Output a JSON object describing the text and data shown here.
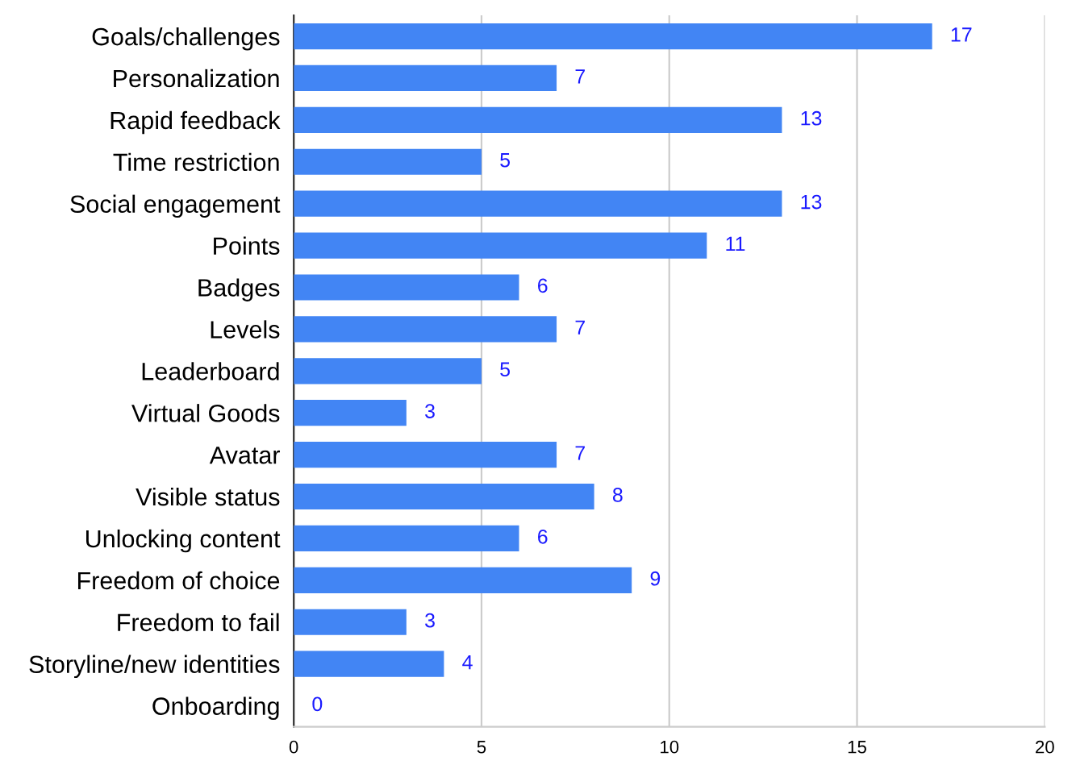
{
  "chart_data": {
    "type": "bar",
    "orientation": "horizontal",
    "categories": [
      "Goals/challenges",
      "Personalization",
      "Rapid feedback",
      "Time restriction",
      "Social engagement",
      "Points",
      "Badges",
      "Levels",
      "Leaderboard",
      "Virtual Goods",
      "Avatar",
      "Visible status",
      "Unlocking content",
      "Freedom of choice",
      "Freedom to fail",
      "Storyline/new identities",
      "Onboarding"
    ],
    "values": [
      17,
      7,
      13,
      5,
      13,
      11,
      6,
      7,
      5,
      3,
      7,
      8,
      6,
      9,
      3,
      4,
      0
    ],
    "color": "#4285f4",
    "xlim": [
      0,
      20
    ],
    "xticks": [
      0,
      5,
      10,
      15,
      20
    ],
    "grid": "x",
    "data_labels": true,
    "legend": false
  }
}
